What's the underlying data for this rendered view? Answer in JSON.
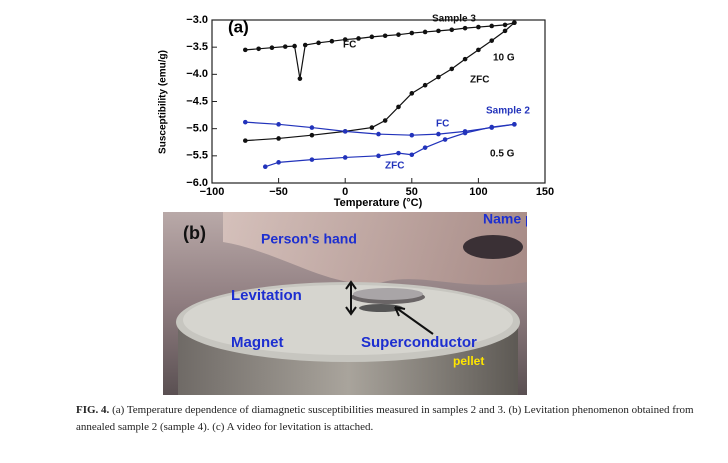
{
  "chart_data": {
    "type": "line",
    "panel_label": "(a)",
    "xlabel": "Temperature (°C)",
    "ylabel": "Susceptibility (emu/g)",
    "xlim": [
      -100,
      150
    ],
    "xticks": [
      {
        "value": -100,
        "label": "−100"
      },
      {
        "value": -50,
        "label": "−50"
      },
      0,
      50,
      100,
      150
    ],
    "ylim": [
      -6,
      -3
    ],
    "yticks": [
      {
        "value": -6,
        "label": "−6.0"
      },
      {
        "value": -5.5,
        "label": "−5.5"
      },
      {
        "value": -5,
        "label": "−5.0"
      },
      {
        "value": -4.5,
        "label": "−4.5"
      },
      {
        "value": -4,
        "label": "−4.0"
      },
      {
        "value": -3.5,
        "label": "−3.5"
      },
      {
        "value": -3,
        "label": "−3.0"
      }
    ],
    "series": [
      {
        "name": "FC",
        "color": "#111111",
        "x": [
          -75,
          -65,
          -55,
          -45,
          -38,
          -34,
          -30,
          -20,
          -10,
          0,
          10,
          20,
          30,
          40,
          50,
          60,
          70,
          80,
          90,
          100,
          110,
          120,
          127
        ],
        "values": [
          -3.55,
          -3.53,
          -3.51,
          -3.49,
          -3.48,
          -4.08,
          -3.46,
          -3.42,
          -3.39,
          -3.36,
          -3.34,
          -3.31,
          -3.29,
          -3.27,
          -3.24,
          -3.22,
          -3.2,
          -3.18,
          -3.15,
          -3.13,
          -3.11,
          -3.09,
          -3.05
        ]
      },
      {
        "name": "ZFC",
        "color": "#111111",
        "x": [
          -75,
          -50,
          -25,
          0,
          20,
          30,
          40,
          50,
          60,
          70,
          80,
          90,
          100,
          110,
          120,
          127
        ],
        "values": [
          -5.22,
          -5.18,
          -5.12,
          -5.05,
          -4.98,
          -4.85,
          -4.6,
          -4.35,
          -4.2,
          -4.05,
          -3.9,
          -3.72,
          -3.55,
          -3.38,
          -3.2,
          -3.05
        ]
      },
      {
        "name": "FC",
        "color": "#2233bb",
        "x": [
          -75,
          -50,
          -25,
          0,
          25,
          50,
          70,
          90,
          110,
          127
        ],
        "values": [
          -4.88,
          -4.92,
          -4.98,
          -5.05,
          -5.1,
          -5.12,
          -5.1,
          -5.05,
          -4.98,
          -4.92
        ]
      },
      {
        "name": "ZFC",
        "color": "#2233bb",
        "x": [
          -60,
          -50,
          -25,
          0,
          25,
          40,
          50,
          60,
          75,
          90,
          110,
          127
        ],
        "values": [
          -5.7,
          -5.62,
          -5.57,
          -5.53,
          -5.5,
          -5.45,
          -5.48,
          -5.35,
          -5.2,
          -5.08,
          -4.97,
          -4.92
        ]
      }
    ],
    "annotations": [
      "Sample 3",
      "10 G",
      "Sample 2",
      "0.5 G"
    ]
  },
  "photo": {
    "panel_label": "(b)",
    "labels": [
      "Person's hand",
      "Name pen",
      "Levitation",
      "Magnet",
      "Superconductor",
      "pellet"
    ]
  },
  "caption": {
    "label": "FIG. 4.",
    "text": "(a) Temperature dependence of diamagnetic susceptibilities measured in samples 2 and 3. (b) Levitation phenomenon obtained from annealed sample 2 (sample 4). (c) A video for levitation is attached."
  }
}
